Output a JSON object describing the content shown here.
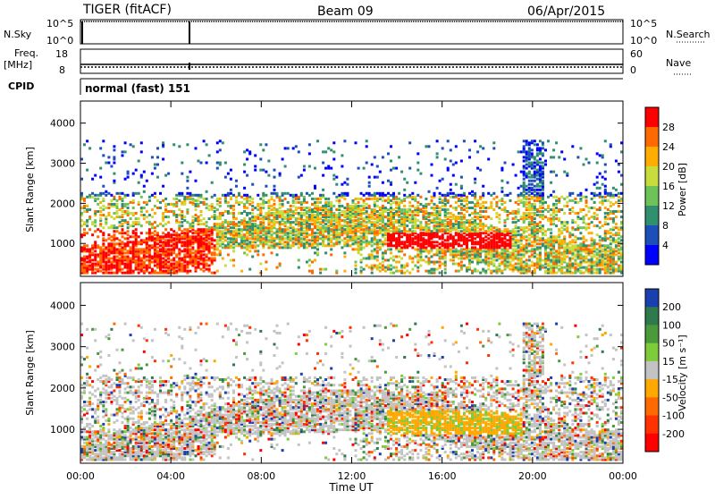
{
  "header": {
    "station": "TIGER (fitACF)",
    "beam": "Beam 09",
    "date": "06/Apr/2015"
  },
  "nsky_panel": {
    "label": "N.Sky",
    "ticks_left": [
      "10^5",
      "10^0"
    ],
    "ticks_right": [
      "10^5",
      "10^0"
    ],
    "right_label": "N.Search"
  },
  "freq_panel": {
    "label_top": "Freq.",
    "label_unit": "[MHz]",
    "ticks_left": [
      "18",
      "8"
    ],
    "ticks_right": [
      "60",
      "0"
    ],
    "right_label": "Nave"
  },
  "cpid_panel": {
    "label": "CPID",
    "mode": "normal (fast) 151"
  },
  "chart_data": [
    {
      "type": "heatmap",
      "quantity": "power",
      "ylabel": "Slant Range [km]",
      "ylim": [
        180,
        4550
      ],
      "yticks": [
        1000,
        2000,
        3000,
        4000
      ],
      "xlim": [
        0,
        24
      ],
      "xticks": [
        "00:00",
        "04:00",
        "08:00",
        "12:00",
        "16:00",
        "20:00",
        "00:00"
      ],
      "colorbar_label": "Power [dB]",
      "colorbar_ticks": [
        "28",
        "24",
        "20",
        "16",
        "12",
        "8",
        "4"
      ],
      "colorbar_colors": [
        "#ff0000",
        "#ff6a00",
        "#ffad00",
        "#c8dc3c",
        "#6ec25a",
        "#2f8f6e",
        "#1c4fb8",
        "#0000ff"
      ]
    },
    {
      "type": "heatmap",
      "quantity": "velocity",
      "ylabel": "Slant Range [km]",
      "ylim": [
        180,
        4550
      ],
      "yticks": [
        1000,
        2000,
        3000,
        4000
      ],
      "xlim": [
        0,
        24
      ],
      "xticks": [
        "00:00",
        "04:00",
        "08:00",
        "12:00",
        "16:00",
        "20:00",
        "00:00"
      ],
      "xlabel": "Time UT",
      "colorbar_label": "Velocity [m s⁻¹]",
      "colorbar_ticks": [
        "200",
        "100",
        "50",
        "15",
        "-15",
        "-50",
        "-100",
        "-200"
      ],
      "colorbar_colors": [
        "#1a3fae",
        "#2e7a4c",
        "#4a9a3c",
        "#7ecc3a",
        "#c3c3c3",
        "#ffa800",
        "#ff6a00",
        "#ff3300",
        "#ff0000"
      ]
    }
  ]
}
